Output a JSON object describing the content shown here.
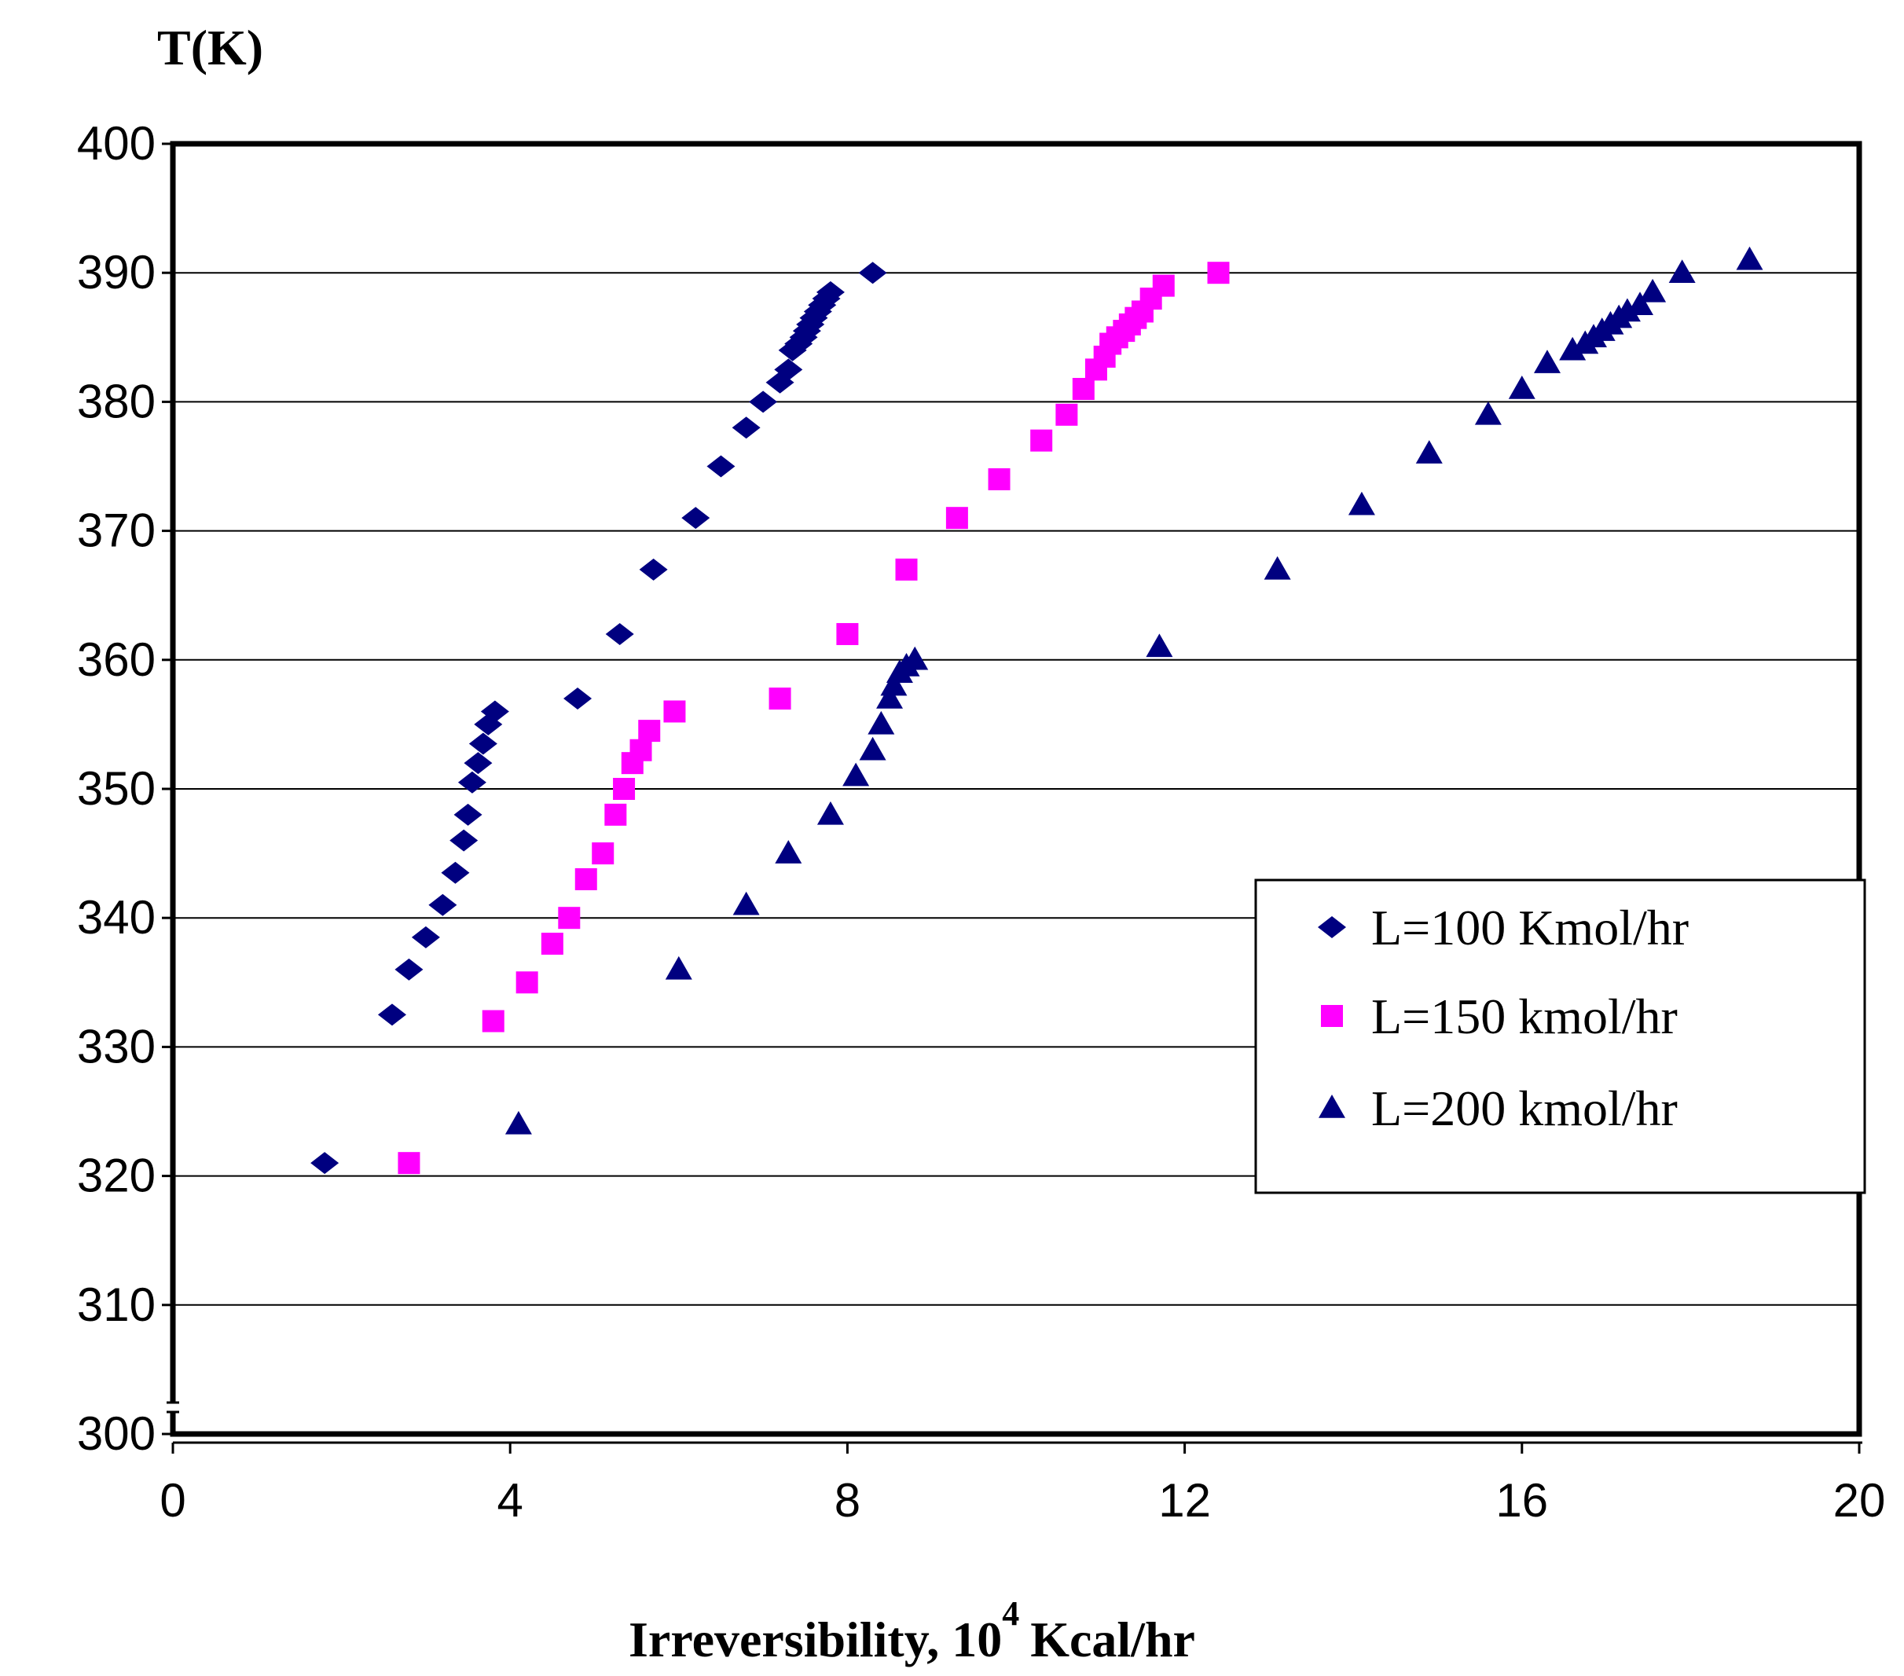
{
  "chart_data": {
    "type": "scatter",
    "title": "",
    "ylabel": "T(K)",
    "xlabel": "Irreversibility, 10",
    "xlabel_superscript": "4",
    "xlabel_suffix": "Kcal/hr",
    "xlim": [
      0,
      20
    ],
    "ylim": [
      300,
      400
    ],
    "xticks": [
      "0",
      "4",
      "8",
      "12",
      "16",
      "20"
    ],
    "yticks": [
      "300",
      "310",
      "320",
      "330",
      "340",
      "350",
      "360",
      "370",
      "380",
      "390",
      "400"
    ],
    "grid": "horizontal",
    "legend_position": "right",
    "series": [
      {
        "name": "L=100 Kmol/hr",
        "marker": "diamond",
        "color": "#000080",
        "points": [
          [
            1.8,
            321
          ],
          [
            2.6,
            332.5
          ],
          [
            2.8,
            336
          ],
          [
            3.0,
            338.5
          ],
          [
            3.2,
            341
          ],
          [
            3.35,
            343.5
          ],
          [
            3.45,
            346
          ],
          [
            3.5,
            348
          ],
          [
            3.55,
            350.5
          ],
          [
            3.62,
            352
          ],
          [
            3.68,
            353.5
          ],
          [
            3.74,
            355
          ],
          [
            3.82,
            356
          ],
          [
            4.8,
            357
          ],
          [
            5.3,
            362
          ],
          [
            5.7,
            367
          ],
          [
            6.2,
            371
          ],
          [
            6.5,
            375
          ],
          [
            6.8,
            378
          ],
          [
            7.0,
            380
          ],
          [
            7.2,
            381.5
          ],
          [
            7.3,
            382.5
          ],
          [
            7.35,
            384
          ],
          [
            7.42,
            384.5
          ],
          [
            7.48,
            385
          ],
          [
            7.52,
            385.5
          ],
          [
            7.56,
            386
          ],
          [
            7.6,
            386.5
          ],
          [
            7.65,
            387
          ],
          [
            7.7,
            387.5
          ],
          [
            7.75,
            388
          ],
          [
            7.8,
            388.5
          ],
          [
            8.3,
            390
          ]
        ]
      },
      {
        "name": "L=150 kmol/hr",
        "marker": "square",
        "color": "#FF00FF",
        "points": [
          [
            2.8,
            321
          ],
          [
            3.8,
            332
          ],
          [
            4.2,
            335
          ],
          [
            4.5,
            338
          ],
          [
            4.7,
            340
          ],
          [
            4.9,
            343
          ],
          [
            5.1,
            345
          ],
          [
            5.25,
            348
          ],
          [
            5.35,
            350
          ],
          [
            5.45,
            352
          ],
          [
            5.55,
            353
          ],
          [
            5.65,
            354.5
          ],
          [
            5.95,
            356
          ],
          [
            7.2,
            357
          ],
          [
            8.0,
            362
          ],
          [
            8.7,
            367
          ],
          [
            9.3,
            371
          ],
          [
            9.8,
            374
          ],
          [
            10.3,
            377
          ],
          [
            10.6,
            379
          ],
          [
            10.8,
            381
          ],
          [
            10.95,
            382.5
          ],
          [
            11.05,
            383.5
          ],
          [
            11.12,
            384.5
          ],
          [
            11.2,
            385
          ],
          [
            11.28,
            385.5
          ],
          [
            11.35,
            386
          ],
          [
            11.42,
            386.5
          ],
          [
            11.5,
            387
          ],
          [
            11.6,
            388
          ],
          [
            11.75,
            389
          ],
          [
            12.4,
            390
          ]
        ]
      },
      {
        "name": "L=200 kmol/hr",
        "marker": "triangle",
        "color": "#000080",
        "points": [
          [
            4.1,
            324
          ],
          [
            6.0,
            336
          ],
          [
            6.8,
            341
          ],
          [
            7.3,
            345
          ],
          [
            7.8,
            348
          ],
          [
            8.1,
            351
          ],
          [
            8.3,
            353
          ],
          [
            8.4,
            355
          ],
          [
            8.5,
            357
          ],
          [
            8.55,
            358
          ],
          [
            8.62,
            359
          ],
          [
            8.7,
            359.5
          ],
          [
            8.8,
            360
          ],
          [
            11.7,
            361
          ],
          [
            13.1,
            367
          ],
          [
            14.1,
            372
          ],
          [
            14.9,
            376
          ],
          [
            15.6,
            379
          ],
          [
            16.0,
            381
          ],
          [
            16.3,
            383
          ],
          [
            16.6,
            384
          ],
          [
            16.75,
            384.5
          ],
          [
            16.85,
            385
          ],
          [
            16.95,
            385.5
          ],
          [
            17.05,
            386
          ],
          [
            17.15,
            386.5
          ],
          [
            17.25,
            387
          ],
          [
            17.4,
            387.5
          ],
          [
            17.55,
            388.5
          ],
          [
            17.9,
            390
          ],
          [
            18.7,
            391
          ]
        ]
      }
    ]
  }
}
